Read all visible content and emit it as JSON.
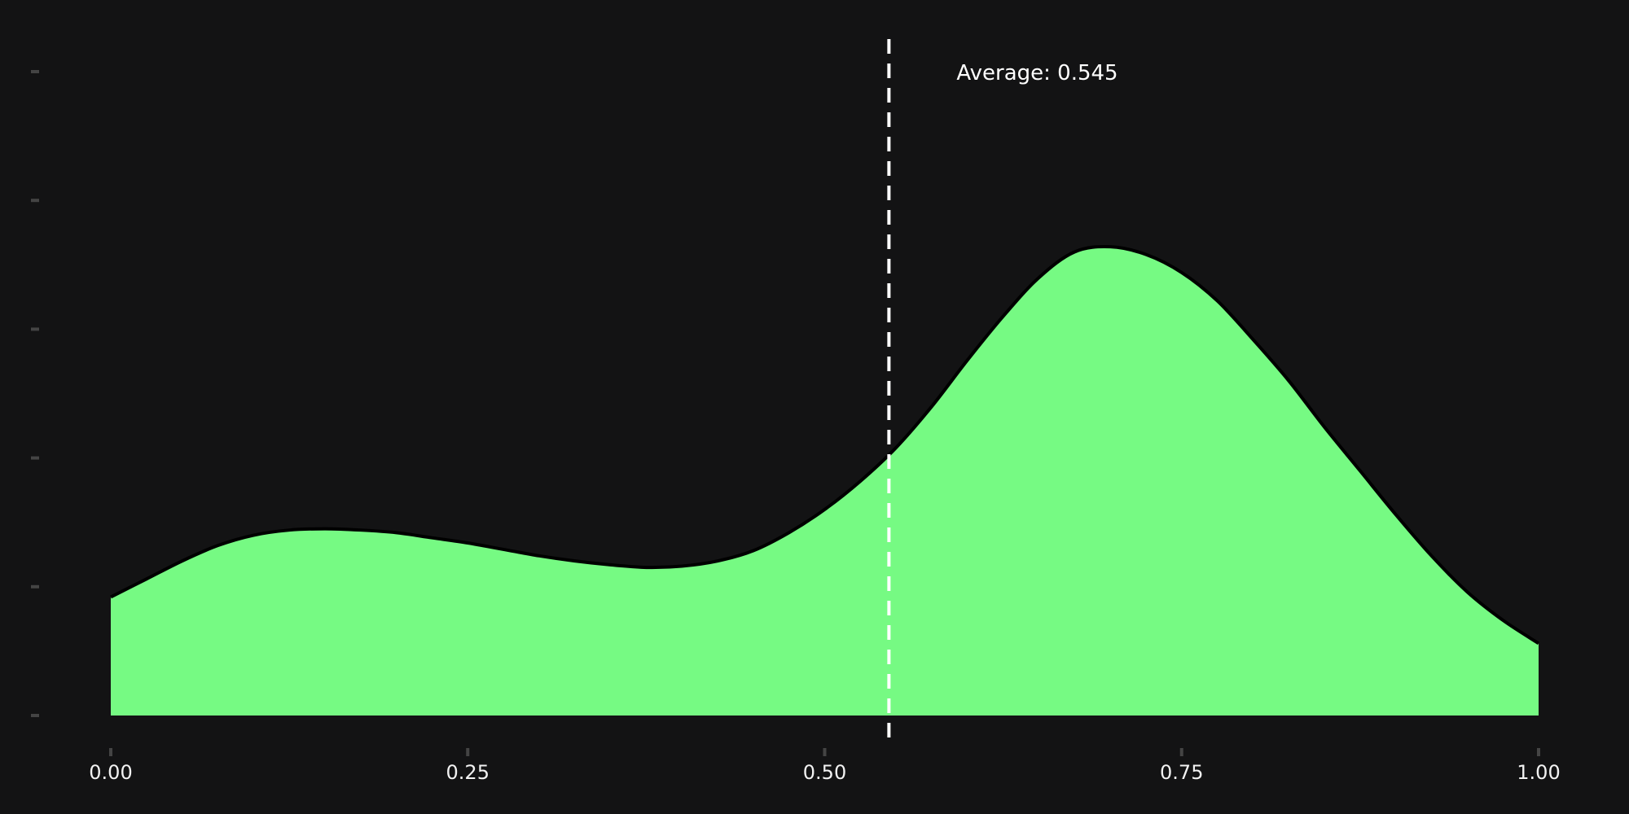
{
  "chart_data": {
    "type": "area",
    "title": "",
    "xlabel": "",
    "ylabel": "",
    "xlim": [
      0,
      1
    ],
    "ylim": [
      0,
      2.5
    ],
    "x_ticks": [
      0,
      0.25,
      0.5,
      0.75,
      1
    ],
    "x_tick_labels": [
      "0.00",
      "0.25",
      "0.50",
      "0.75",
      "1.00"
    ],
    "y_ticks": [
      0,
      0.5,
      1.0,
      1.5,
      2.0,
      2.5
    ],
    "y_tick_labels_shown": false,
    "grid": false,
    "legend": "none",
    "series": [
      {
        "x": [
          0,
          0.025,
          0.05,
          0.075,
          0.1,
          0.125,
          0.15,
          0.175,
          0.2,
          0.225,
          0.25,
          0.275,
          0.3,
          0.325,
          0.35,
          0.375,
          0.4,
          0.425,
          0.45,
          0.475,
          0.5,
          0.525,
          0.55,
          0.575,
          0.6,
          0.625,
          0.65,
          0.675,
          0.7,
          0.725,
          0.75,
          0.775,
          0.8,
          0.825,
          0.85,
          0.875,
          0.9,
          0.925,
          0.95,
          0.975,
          1
        ],
        "y": [
          0.46,
          0.53,
          0.6,
          0.66,
          0.7,
          0.72,
          0.725,
          0.72,
          0.71,
          0.69,
          0.67,
          0.645,
          0.62,
          0.6,
          0.585,
          0.575,
          0.58,
          0.6,
          0.64,
          0.71,
          0.8,
          0.91,
          1.04,
          1.2,
          1.38,
          1.55,
          1.7,
          1.8,
          1.82,
          1.79,
          1.72,
          1.61,
          1.46,
          1.3,
          1.12,
          0.95,
          0.78,
          0.62,
          0.48,
          0.37,
          0.28
        ]
      }
    ],
    "average_line": {
      "x": 0.545,
      "label": "Average: 0.545"
    },
    "colors": {
      "background": "#131314",
      "fill": "#76fa83",
      "outline": "#000000",
      "average_line": "#ffffff",
      "text": "#f2f2f2",
      "tick_mark": "#444444"
    }
  }
}
